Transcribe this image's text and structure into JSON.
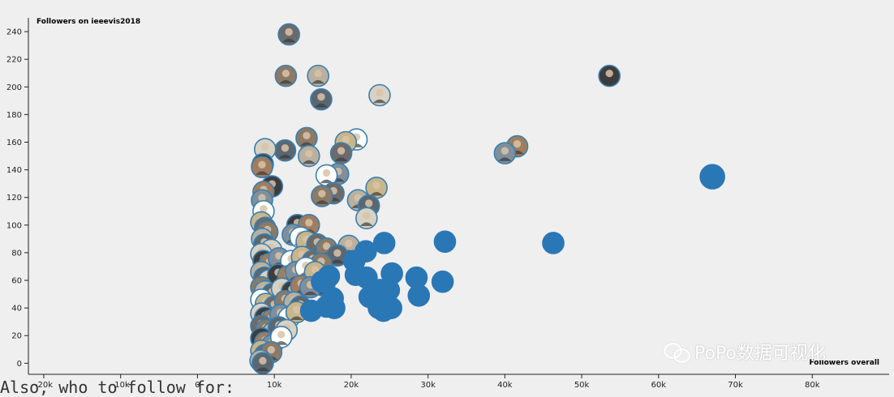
{
  "chart_data": {
    "type": "scatter",
    "ylabel": "Followers on ieeevis2018",
    "xlabel": "Followers overall",
    "xlim": [
      -22000,
      90000
    ],
    "ylim": [
      -8,
      250
    ],
    "x_ticks": [
      -20000,
      -10000,
      0,
      10000,
      20000,
      30000,
      40000,
      50000,
      60000,
      70000,
      80000
    ],
    "x_tick_labels": [
      "-20k",
      "-10k",
      "0",
      "10k",
      "20k",
      "30k",
      "40k",
      "50k",
      "60k",
      "70k",
      "80k"
    ],
    "y_ticks": [
      0,
      20,
      40,
      60,
      80,
      100,
      120,
      140,
      160,
      180,
      200,
      220,
      240
    ],
    "point_radius_px": 13,
    "colors": {
      "axis": "#222222",
      "point_fill": "#2a77b6",
      "point_stroke": "#3b7fb0",
      "avatar_palette": [
        "#6b6b6b",
        "#8a7a66",
        "#b9b0a0",
        "#5b6770",
        "#d8d2c4",
        "#3d3d3d",
        "#a07d5e",
        "#7f8f9c",
        "#ffffff",
        "#c8b68a"
      ]
    },
    "series": [
      {
        "marker": "filled-circle",
        "points": [
          {
            "x": 67000,
            "y": 135,
            "r": 15
          },
          {
            "x": 46300,
            "y": 87
          },
          {
            "x": 32200,
            "y": 88
          },
          {
            "x": 24300,
            "y": 87
          },
          {
            "x": 21900,
            "y": 81
          },
          {
            "x": 20400,
            "y": 74
          },
          {
            "x": 25300,
            "y": 65
          },
          {
            "x": 28500,
            "y": 62
          },
          {
            "x": 31900,
            "y": 59
          },
          {
            "x": 20600,
            "y": 64
          },
          {
            "x": 22000,
            "y": 62
          },
          {
            "x": 23800,
            "y": 53
          },
          {
            "x": 24900,
            "y": 53
          },
          {
            "x": 22400,
            "y": 48
          },
          {
            "x": 28800,
            "y": 49
          },
          {
            "x": 23600,
            "y": 40
          },
          {
            "x": 25200,
            "y": 40
          },
          {
            "x": 24200,
            "y": 38
          },
          {
            "x": 17100,
            "y": 63
          },
          {
            "x": 16200,
            "y": 59
          },
          {
            "x": 17600,
            "y": 47
          },
          {
            "x": 16800,
            "y": 41
          },
          {
            "x": 17800,
            "y": 40
          },
          {
            "x": 14800,
            "y": 38
          }
        ]
      },
      {
        "marker": "avatar-circle",
        "points": [
          {
            "x": 11900,
            "y": 238
          },
          {
            "x": 11500,
            "y": 208
          },
          {
            "x": 15700,
            "y": 208
          },
          {
            "x": 16100,
            "y": 191
          },
          {
            "x": 23700,
            "y": 194
          },
          {
            "x": 53600,
            "y": 208
          },
          {
            "x": 41600,
            "y": 157
          },
          {
            "x": 40000,
            "y": 152
          },
          {
            "x": 20700,
            "y": 162
          },
          {
            "x": 19300,
            "y": 160
          },
          {
            "x": 18700,
            "y": 152
          },
          {
            "x": 14200,
            "y": 163
          },
          {
            "x": 14500,
            "y": 150
          },
          {
            "x": 11400,
            "y": 154
          },
          {
            "x": 8800,
            "y": 155
          },
          {
            "x": 8500,
            "y": 144
          },
          {
            "x": 8400,
            "y": 142
          },
          {
            "x": 18300,
            "y": 137
          },
          {
            "x": 16800,
            "y": 136
          },
          {
            "x": 23300,
            "y": 127
          },
          {
            "x": 17700,
            "y": 123
          },
          {
            "x": 16200,
            "y": 121
          },
          {
            "x": 20900,
            "y": 118
          },
          {
            "x": 22300,
            "y": 114
          },
          {
            "x": 22000,
            "y": 105
          },
          {
            "x": 9700,
            "y": 128
          },
          {
            "x": 8600,
            "y": 124
          },
          {
            "x": 8400,
            "y": 118
          },
          {
            "x": 8600,
            "y": 110
          },
          {
            "x": 8300,
            "y": 102
          },
          {
            "x": 8800,
            "y": 98
          },
          {
            "x": 9100,
            "y": 95
          },
          {
            "x": 8400,
            "y": 90
          },
          {
            "x": 8700,
            "y": 86
          },
          {
            "x": 9600,
            "y": 82
          },
          {
            "x": 13000,
            "y": 100
          },
          {
            "x": 14500,
            "y": 100
          },
          {
            "x": 12400,
            "y": 93
          },
          {
            "x": 13400,
            "y": 91
          },
          {
            "x": 14200,
            "y": 88
          },
          {
            "x": 15600,
            "y": 86
          },
          {
            "x": 16800,
            "y": 83
          },
          {
            "x": 19700,
            "y": 85
          },
          {
            "x": 18200,
            "y": 78
          },
          {
            "x": 8300,
            "y": 79
          },
          {
            "x": 8600,
            "y": 74
          },
          {
            "x": 9400,
            "y": 72
          },
          {
            "x": 10600,
            "y": 76
          },
          {
            "x": 12200,
            "y": 74
          },
          {
            "x": 13600,
            "y": 77
          },
          {
            "x": 15000,
            "y": 74
          },
          {
            "x": 16100,
            "y": 72
          },
          {
            "x": 8300,
            "y": 66
          },
          {
            "x": 8700,
            "y": 62
          },
          {
            "x": 9300,
            "y": 60
          },
          {
            "x": 10500,
            "y": 64
          },
          {
            "x": 11800,
            "y": 63
          },
          {
            "x": 12800,
            "y": 66
          },
          {
            "x": 14100,
            "y": 69
          },
          {
            "x": 15300,
            "y": 66
          },
          {
            "x": 16500,
            "y": 56
          },
          {
            "x": 8300,
            "y": 55
          },
          {
            "x": 8800,
            "y": 52
          },
          {
            "x": 9700,
            "y": 50
          },
          {
            "x": 11000,
            "y": 54
          },
          {
            "x": 12300,
            "y": 52
          },
          {
            "x": 13500,
            "y": 56
          },
          {
            "x": 14700,
            "y": 55
          },
          {
            "x": 8300,
            "y": 46
          },
          {
            "x": 8900,
            "y": 43
          },
          {
            "x": 10000,
            "y": 41
          },
          {
            "x": 11400,
            "y": 45
          },
          {
            "x": 12600,
            "y": 44
          },
          {
            "x": 13400,
            "y": 41
          },
          {
            "x": 8300,
            "y": 36
          },
          {
            "x": 8800,
            "y": 33
          },
          {
            "x": 9600,
            "y": 31
          },
          {
            "x": 10800,
            "y": 35
          },
          {
            "x": 11900,
            "y": 33
          },
          {
            "x": 12900,
            "y": 37
          },
          {
            "x": 8300,
            "y": 27
          },
          {
            "x": 8900,
            "y": 24
          },
          {
            "x": 9800,
            "y": 22
          },
          {
            "x": 10600,
            "y": 26
          },
          {
            "x": 11600,
            "y": 24
          },
          {
            "x": 8300,
            "y": 18
          },
          {
            "x": 8800,
            "y": 15
          },
          {
            "x": 9700,
            "y": 13
          },
          {
            "x": 10900,
            "y": 19
          },
          {
            "x": 8300,
            "y": 9
          },
          {
            "x": 8800,
            "y": 6
          },
          {
            "x": 9600,
            "y": 8
          },
          {
            "x": 8200,
            "y": 2
          },
          {
            "x": 8500,
            "y": 0
          }
        ]
      }
    ]
  },
  "caption": "Also, who to follow for:",
  "watermark": "PoPo数据可视化"
}
